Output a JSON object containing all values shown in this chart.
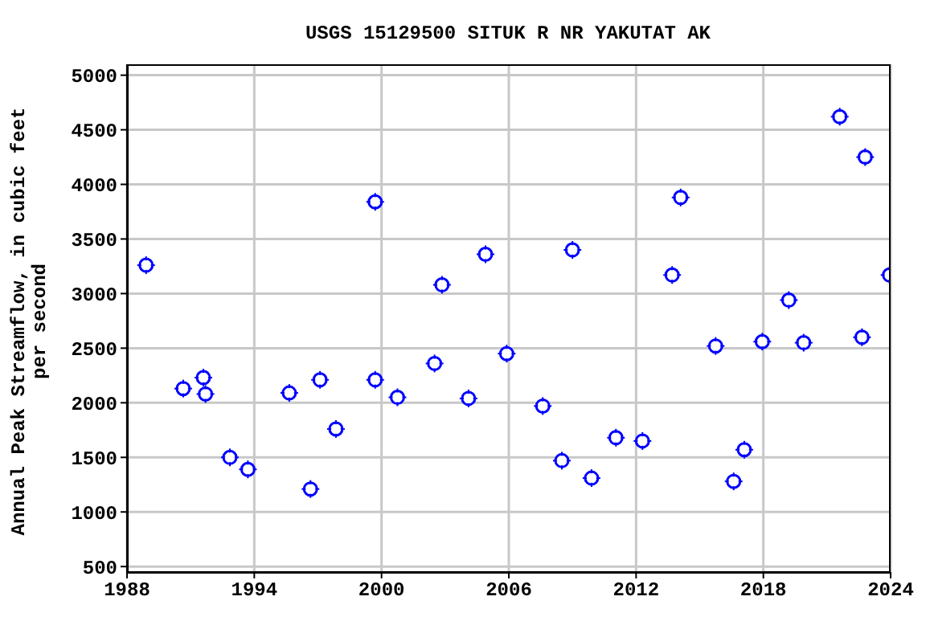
{
  "chart_data": {
    "type": "scatter",
    "title": "USGS 15129500 SITUK R NR YAKUTAT AK",
    "ylabel": "Annual Peak Streamflow, in cubic feet per second",
    "x": [
      1988.9,
      1990.65,
      1991.6,
      1991.7,
      1992.85,
      1993.7,
      1995.65,
      1996.65,
      1997.1,
      1997.85,
      1999.7,
      1999.7,
      2000.75,
      2002.5,
      2002.85,
      2004.1,
      2004.9,
      2005.9,
      2007.6,
      2008.5,
      2009.0,
      2009.9,
      2011.05,
      2012.3,
      2013.7,
      2014.1,
      2015.75,
      2016.6,
      2017.1,
      2017.95,
      2019.2,
      2019.9,
      2021.6,
      2022.65,
      2022.8,
      2023.95
    ],
    "series": [
      {
        "color": "#0000ff",
        "values": [
          3260,
          2130,
          2230,
          2080,
          1500,
          1390,
          2090,
          1210,
          2210,
          1760,
          3840,
          2210,
          2050,
          2360,
          3080,
          2040,
          3360,
          2450,
          1970,
          1470,
          3400,
          1310,
          1680,
          1650,
          3170,
          3880,
          2520,
          1280,
          1570,
          2560,
          2940,
          2550,
          4620,
          2600,
          4250,
          3170
        ]
      }
    ],
    "xlim": [
      1988,
      2024
    ],
    "xticks": [
      1988,
      1994,
      2000,
      2006,
      2012,
      2018,
      2024
    ],
    "ylim": [
      450,
      5100
    ],
    "yticks": [
      500,
      1000,
      1500,
      2000,
      2500,
      3000,
      3500,
      4000,
      4500,
      5000
    ],
    "grid": true,
    "marker": "circle",
    "legend": false
  }
}
